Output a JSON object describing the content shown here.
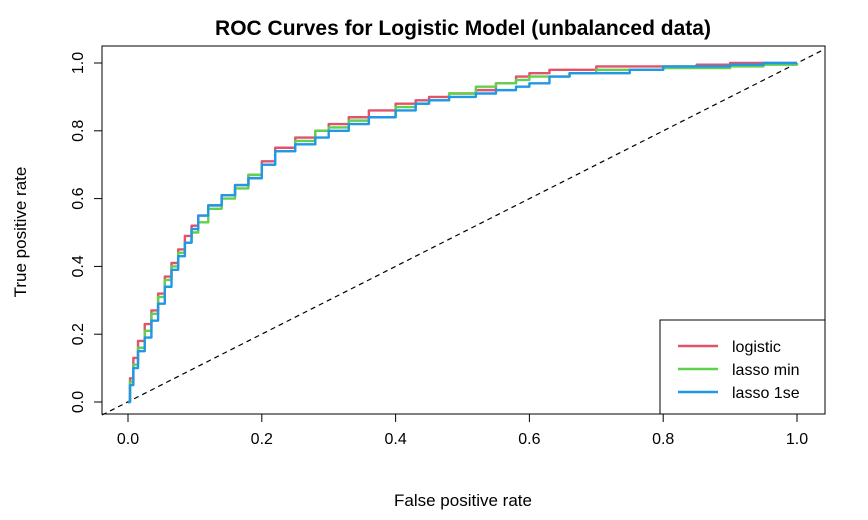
{
  "chart_data": {
    "type": "line",
    "title": "ROC Curves for Logistic Model (unbalanced data)",
    "xlabel": "False positive rate",
    "ylabel": "True positive rate",
    "xlim": [
      0,
      1
    ],
    "ylim": [
      0,
      1
    ],
    "x_ticks": [
      0.0,
      0.2,
      0.4,
      0.6,
      0.8,
      1.0
    ],
    "y_ticks": [
      0.0,
      0.2,
      0.4,
      0.6,
      0.8,
      1.0
    ],
    "x_tick_labels": [
      "0.0",
      "0.2",
      "0.4",
      "0.6",
      "0.8",
      "1.0"
    ],
    "y_tick_labels": [
      "0.0",
      "0.2",
      "0.4",
      "0.6",
      "0.8",
      "1.0"
    ],
    "grid": false,
    "legend_position": "bottom-right",
    "reference_line": {
      "x": [
        0,
        1
      ],
      "y": [
        0,
        1
      ],
      "style": "dashed",
      "color": "#000000"
    },
    "series": [
      {
        "name": "logistic",
        "color": "#DF536B",
        "x": [
          0,
          0.003,
          0.008,
          0.015,
          0.025,
          0.035,
          0.045,
          0.055,
          0.065,
          0.075,
          0.085,
          0.095,
          0.105,
          0.12,
          0.14,
          0.16,
          0.18,
          0.2,
          0.22,
          0.25,
          0.28,
          0.3,
          0.33,
          0.36,
          0.4,
          0.43,
          0.45,
          0.48,
          0.52,
          0.55,
          0.58,
          0.6,
          0.63,
          0.66,
          0.7,
          0.75,
          0.8,
          0.85,
          0.9,
          0.95,
          1.0
        ],
        "y": [
          0,
          0.07,
          0.13,
          0.18,
          0.23,
          0.27,
          0.32,
          0.37,
          0.41,
          0.45,
          0.49,
          0.52,
          0.55,
          0.58,
          0.61,
          0.64,
          0.67,
          0.71,
          0.75,
          0.78,
          0.8,
          0.82,
          0.84,
          0.86,
          0.88,
          0.89,
          0.9,
          0.91,
          0.92,
          0.94,
          0.96,
          0.97,
          0.98,
          0.98,
          0.99,
          0.99,
          0.99,
          0.995,
          1.0,
          1.0,
          1.0
        ]
      },
      {
        "name": "lasso min",
        "color": "#61D04F",
        "x": [
          0,
          0.003,
          0.008,
          0.015,
          0.025,
          0.035,
          0.045,
          0.055,
          0.065,
          0.075,
          0.085,
          0.095,
          0.105,
          0.12,
          0.14,
          0.16,
          0.18,
          0.2,
          0.22,
          0.25,
          0.28,
          0.3,
          0.33,
          0.36,
          0.4,
          0.43,
          0.45,
          0.48,
          0.52,
          0.55,
          0.58,
          0.6,
          0.63,
          0.66,
          0.7,
          0.75,
          0.8,
          0.85,
          0.9,
          0.95,
          1.0
        ],
        "y": [
          0,
          0.06,
          0.11,
          0.16,
          0.21,
          0.26,
          0.31,
          0.36,
          0.4,
          0.44,
          0.47,
          0.5,
          0.53,
          0.57,
          0.6,
          0.63,
          0.67,
          0.7,
          0.74,
          0.77,
          0.8,
          0.81,
          0.83,
          0.84,
          0.87,
          0.88,
          0.89,
          0.91,
          0.93,
          0.94,
          0.95,
          0.96,
          0.96,
          0.97,
          0.98,
          0.98,
          0.985,
          0.985,
          0.99,
          0.995,
          1.0
        ]
      },
      {
        "name": "lasso 1se",
        "color": "#2297E6",
        "x": [
          0,
          0.003,
          0.008,
          0.015,
          0.025,
          0.035,
          0.045,
          0.055,
          0.065,
          0.075,
          0.085,
          0.095,
          0.105,
          0.12,
          0.14,
          0.16,
          0.18,
          0.2,
          0.22,
          0.25,
          0.28,
          0.3,
          0.33,
          0.36,
          0.4,
          0.43,
          0.45,
          0.48,
          0.52,
          0.55,
          0.58,
          0.6,
          0.63,
          0.66,
          0.7,
          0.75,
          0.8,
          0.85,
          0.9,
          0.95,
          1.0
        ],
        "y": [
          0,
          0.05,
          0.1,
          0.15,
          0.19,
          0.24,
          0.29,
          0.34,
          0.39,
          0.43,
          0.47,
          0.51,
          0.55,
          0.58,
          0.61,
          0.64,
          0.66,
          0.7,
          0.74,
          0.76,
          0.78,
          0.8,
          0.82,
          0.84,
          0.86,
          0.88,
          0.89,
          0.9,
          0.91,
          0.92,
          0.93,
          0.94,
          0.96,
          0.97,
          0.97,
          0.98,
          0.99,
          0.99,
          0.995,
          1.0,
          1.0
        ]
      }
    ]
  }
}
